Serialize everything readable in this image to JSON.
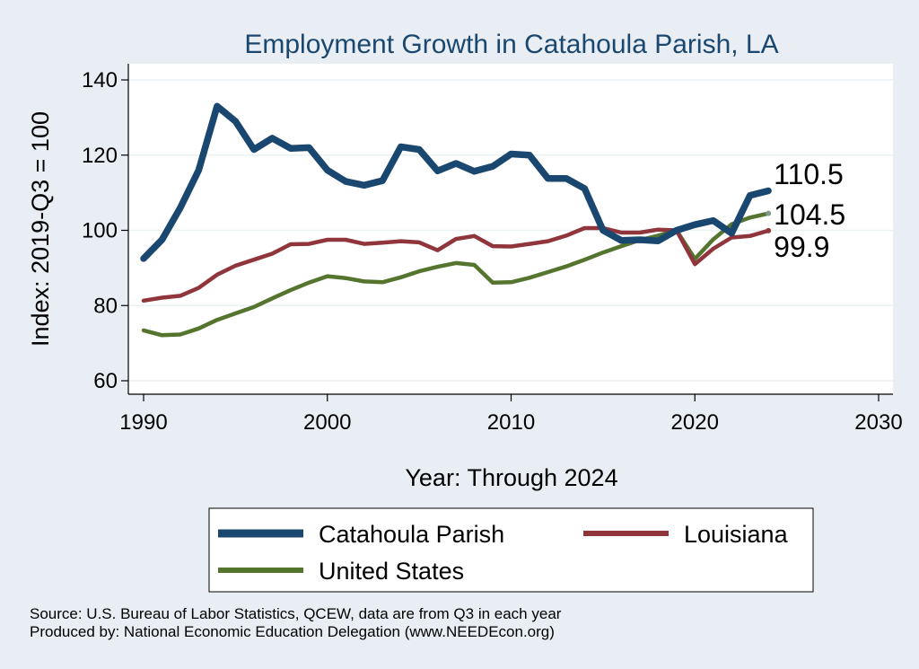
{
  "chart_data": {
    "type": "line",
    "title": "Employment Growth in Catahoula Parish, LA",
    "xlabel": "Year: Through 2024",
    "ylabel": "Index: 2019-Q3 = 100",
    "xlim": [
      1990,
      2030
    ],
    "ylim": [
      57,
      144
    ],
    "xticks": [
      1990,
      2000,
      2010,
      2020,
      2030
    ],
    "yticks": [
      60,
      80,
      100,
      120,
      140
    ],
    "grid": true,
    "legend_position": "bottom",
    "x": [
      1990,
      1991,
      1992,
      1993,
      1994,
      1995,
      1996,
      1997,
      1998,
      1999,
      2000,
      2001,
      2002,
      2003,
      2004,
      2005,
      2006,
      2007,
      2008,
      2009,
      2010,
      2011,
      2012,
      2013,
      2014,
      2015,
      2016,
      2017,
      2018,
      2019,
      2020,
      2021,
      2022,
      2023,
      2024
    ],
    "series": [
      {
        "name": "Catahoula Parish",
        "color": "#1a476f",
        "values": [
          92.5,
          97.5,
          106,
          116,
          133,
          129,
          121.5,
          124.5,
          121.8,
          122,
          116,
          113,
          112,
          113.2,
          122.2,
          121.5,
          115.8,
          117.8,
          115.7,
          117,
          120.3,
          120,
          113.8,
          113.8,
          111.1,
          100,
          97.3,
          97.5,
          97.2,
          100,
          101.5,
          102.6,
          99.2,
          109.3,
          110.5
        ],
        "end_label": "110.5"
      },
      {
        "name": "Louisiana",
        "color": "#90353b",
        "values": [
          81.3,
          82.1,
          82.6,
          84.7,
          88.2,
          90.6,
          92.2,
          93.8,
          96.3,
          96.4,
          97.5,
          97.5,
          96.4,
          96.7,
          97.1,
          96.8,
          94.7,
          97.7,
          98.5,
          95.8,
          95.7,
          96.4,
          97.1,
          98.6,
          100.6,
          100.6,
          99.4,
          99.4,
          100.2,
          100,
          91,
          95.1,
          98.1,
          98.5,
          99.9
        ],
        "end_label": "99.9"
      },
      {
        "name": "United States",
        "color": "#55752f",
        "values": [
          73.4,
          72.1,
          72.3,
          73.9,
          76.2,
          77.9,
          79.6,
          81.9,
          84.1,
          86.1,
          87.8,
          87.3,
          86.4,
          86.2,
          87.5,
          89.1,
          90.3,
          91.3,
          90.8,
          86.1,
          86.2,
          87.4,
          88.9,
          90.4,
          92.2,
          94.1,
          95.8,
          97.4,
          98.6,
          100,
          92.4,
          97.6,
          101.6,
          103.4,
          104.5
        ],
        "end_label": "104.5"
      }
    ],
    "source_lines": [
      "Source: U.S. Bureau of Labor Statistics, QCEW, data are from Q3 in each year",
      "Produced by: National Economic Education Delegation (www.NEEDEcon.org)"
    ],
    "colors": {
      "background": "#e9eef4",
      "plot_background": "#ffffff",
      "grid": "#eaf2f3",
      "title": "#1a476f",
      "text": "#000000"
    }
  }
}
